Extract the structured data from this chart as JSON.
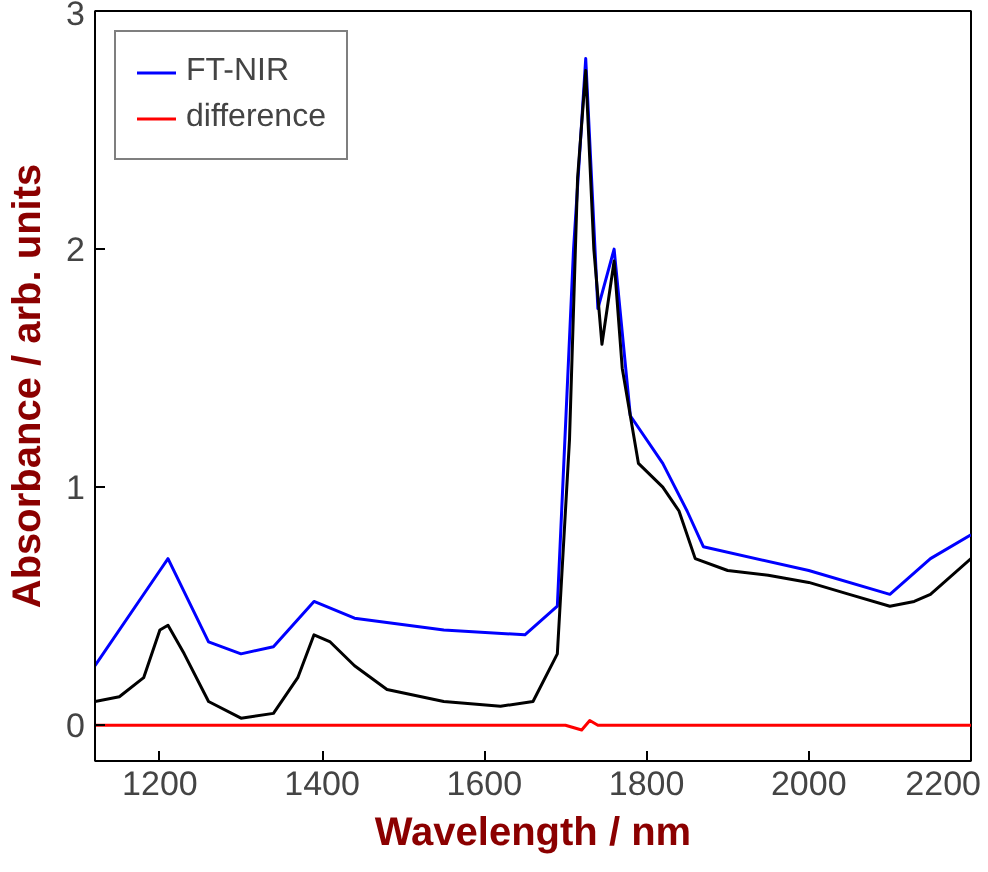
{
  "chart_data": {
    "type": "line",
    "xlabel": "Wavelength / nm",
    "ylabel": "Absorbance / arb. units",
    "xlim": [
      1120,
      2200
    ],
    "ylim": [
      -0.15,
      3
    ],
    "xticks": [
      1200,
      1400,
      1600,
      1800,
      2000,
      2200
    ],
    "yticks": [
      0,
      1,
      2,
      3
    ],
    "grid": false,
    "legend": "top left",
    "marker": "none",
    "line_style": "solid",
    "series": [
      {
        "name": "FT-NIR",
        "color": "#0000ff",
        "x": [
          1120,
          1200,
          1210,
          1260,
          1300,
          1340,
          1390,
          1440,
          1550,
          1650,
          1690,
          1710,
          1725,
          1740,
          1760,
          1780,
          1820,
          1850,
          1870,
          2000,
          2100,
          2150,
          2200
        ],
        "values": [
          0.25,
          0.65,
          0.7,
          0.35,
          0.3,
          0.33,
          0.52,
          0.45,
          0.4,
          0.38,
          0.5,
          2.0,
          2.8,
          1.75,
          2.0,
          1.3,
          1.1,
          0.9,
          0.75,
          0.65,
          0.55,
          0.7,
          0.8
        ]
      },
      {
        "color": "#000000",
        "x": [
          1120,
          1150,
          1180,
          1200,
          1210,
          1230,
          1260,
          1300,
          1340,
          1370,
          1390,
          1410,
          1440,
          1480,
          1550,
          1620,
          1660,
          1690,
          1705,
          1715,
          1725,
          1735,
          1745,
          1760,
          1770,
          1790,
          1820,
          1840,
          1860,
          1900,
          1950,
          2000,
          2050,
          2100,
          2130,
          2150,
          2200
        ],
        "values": [
          0.1,
          0.12,
          0.2,
          0.4,
          0.42,
          0.3,
          0.1,
          0.03,
          0.05,
          0.2,
          0.38,
          0.35,
          0.25,
          0.15,
          0.1,
          0.08,
          0.1,
          0.3,
          1.2,
          2.3,
          2.75,
          2.0,
          1.6,
          1.95,
          1.5,
          1.1,
          1.0,
          0.9,
          0.7,
          0.65,
          0.63,
          0.6,
          0.55,
          0.5,
          0.52,
          0.55,
          0.7
        ]
      },
      {
        "name": "difference",
        "color": "#ff0000",
        "x": [
          1120,
          1700,
          1720,
          1730,
          1740,
          2200
        ],
        "values": [
          0,
          0,
          -0.02,
          0.02,
          0,
          0
        ]
      }
    ]
  }
}
